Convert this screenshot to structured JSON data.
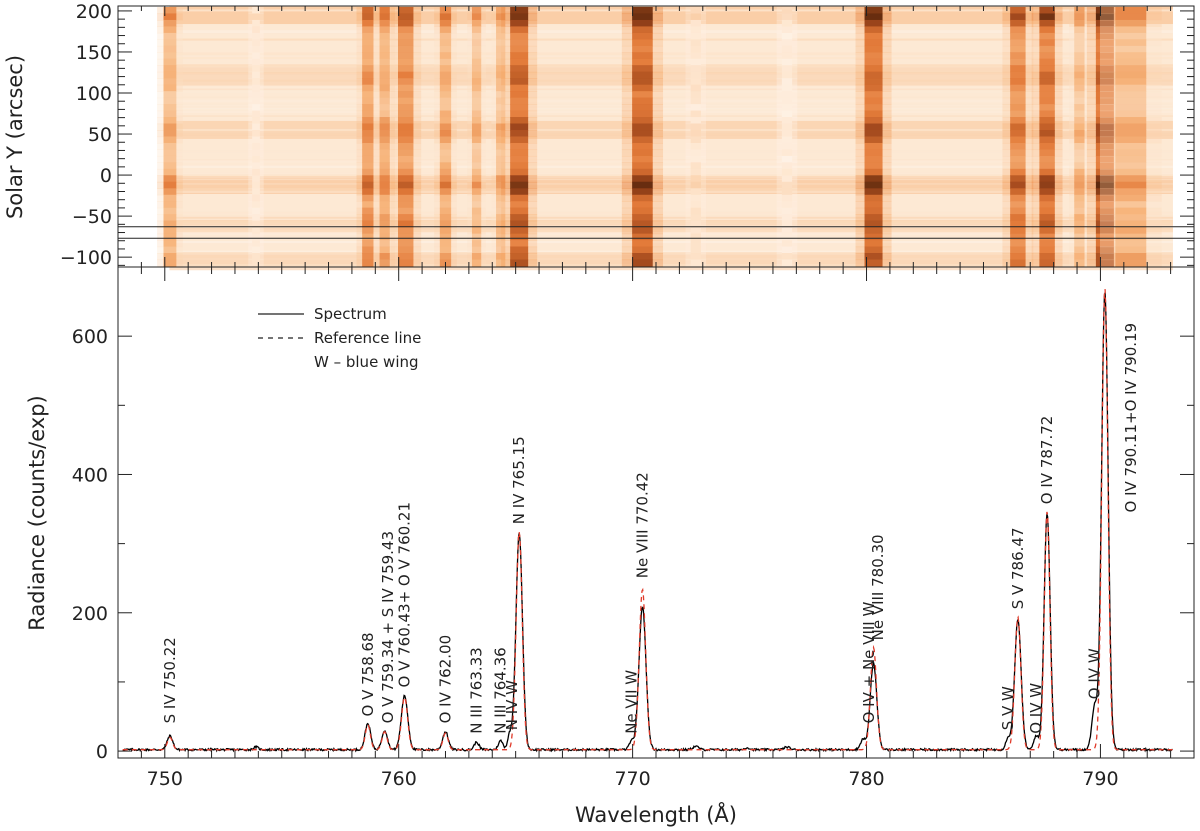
{
  "chart_data": [
    {
      "type": "heatmap",
      "ylabel": "Solar Y (arcsec)",
      "xlim": [
        748,
        794
      ],
      "ylim": [
        -112,
        206
      ],
      "yticks": [
        200,
        150,
        100,
        50,
        0,
        -50,
        -100
      ],
      "colormap": [
        "#ffffff",
        "#fde3c9",
        "#f4a05a",
        "#d85a14",
        "#7a2205",
        "#150400"
      ],
      "data_x_range": [
        750.2,
        793.1
      ],
      "selection_rows": [
        -63,
        -77
      ],
      "dark_columns": [
        {
          "x": 750.22,
          "w": 0.25,
          "v": 0.55
        },
        {
          "x": 753.9,
          "w": 0.15,
          "v": 0.2
        },
        {
          "x": 758.68,
          "w": 0.22,
          "v": 0.7
        },
        {
          "x": 759.4,
          "w": 0.2,
          "v": 0.6
        },
        {
          "x": 760.3,
          "w": 0.3,
          "v": 0.75
        },
        {
          "x": 762.0,
          "w": 0.22,
          "v": 0.6
        },
        {
          "x": 763.33,
          "w": 0.18,
          "v": 0.5
        },
        {
          "x": 764.36,
          "w": 0.18,
          "v": 0.5
        },
        {
          "x": 765.15,
          "w": 0.35,
          "v": 0.95
        },
        {
          "x": 770.42,
          "w": 0.4,
          "v": 0.98
        },
        {
          "x": 772.7,
          "w": 0.2,
          "v": 0.25
        },
        {
          "x": 776.6,
          "w": 0.2,
          "v": 0.2
        },
        {
          "x": 780.3,
          "w": 0.35,
          "v": 0.95
        },
        {
          "x": 786.47,
          "w": 0.3,
          "v": 0.8
        },
        {
          "x": 787.72,
          "w": 0.3,
          "v": 0.9
        },
        {
          "x": 789.1,
          "w": 0.2,
          "v": 0.5
        },
        {
          "x": 790.19,
          "w": 0.35,
          "v": 0.98
        },
        {
          "x": 791.3,
          "w": 0.6,
          "v": 0.55
        }
      ],
      "bright_rows": [
        {
          "y": 195,
          "v": 0.9
        },
        {
          "y": 120,
          "v": 0.35
        },
        {
          "y": 55,
          "v": 0.55
        },
        {
          "y": -12,
          "v": 0.85
        },
        {
          "y": -60,
          "v": 0.4
        },
        {
          "y": -105,
          "v": 0.45
        }
      ]
    },
    {
      "type": "line",
      "xlabel": "Wavelength (Å)",
      "ylabel": "Radiance (counts/exp)",
      "xlim": [
        748,
        794
      ],
      "ylim": [
        -10,
        700
      ],
      "xticks": [
        750,
        760,
        770,
        780,
        790
      ],
      "yticks": [
        0,
        200,
        400,
        600
      ],
      "continuum": 2,
      "series": [
        {
          "name": "Spectrum",
          "style": "solid",
          "color": "#000000",
          "x_range": [
            748.2,
            793.1
          ],
          "peaks": [
            {
              "x": 750.22,
              "h": 20,
              "w": 0.12
            },
            {
              "x": 753.9,
              "h": 4,
              "w": 0.1
            },
            {
              "x": 758.68,
              "h": 38,
              "w": 0.12
            },
            {
              "x": 759.4,
              "h": 28,
              "w": 0.12
            },
            {
              "x": 760.25,
              "h": 78,
              "w": 0.14
            },
            {
              "x": 762.0,
              "h": 26,
              "w": 0.12
            },
            {
              "x": 763.33,
              "h": 11,
              "w": 0.1
            },
            {
              "x": 764.36,
              "h": 13,
              "w": 0.1
            },
            {
              "x": 764.75,
              "h": 22,
              "w": 0.09
            },
            {
              "x": 765.15,
              "h": 313,
              "w": 0.14
            },
            {
              "x": 769.95,
              "h": 12,
              "w": 0.1
            },
            {
              "x": 770.42,
              "h": 207,
              "w": 0.15
            },
            {
              "x": 772.7,
              "h": 5,
              "w": 0.12
            },
            {
              "x": 774.9,
              "h": 3,
              "w": 0.1
            },
            {
              "x": 776.6,
              "h": 4,
              "w": 0.12
            },
            {
              "x": 779.85,
              "h": 15,
              "w": 0.11
            },
            {
              "x": 780.3,
              "h": 125,
              "w": 0.14
            },
            {
              "x": 786.05,
              "h": 17,
              "w": 0.1
            },
            {
              "x": 786.47,
              "h": 188,
              "w": 0.14
            },
            {
              "x": 787.25,
              "h": 20,
              "w": 0.1
            },
            {
              "x": 787.72,
              "h": 342,
              "w": 0.13
            },
            {
              "x": 789.75,
              "h": 62,
              "w": 0.12
            },
            {
              "x": 790.19,
              "h": 663,
              "w": 0.14
            }
          ]
        },
        {
          "name": "Reference line",
          "style": "dashed",
          "color": "#e03a2a",
          "x_range": [
            748.2,
            793.1
          ],
          "peaks": [
            {
              "x": 750.22,
              "h": 18,
              "w": 0.11
            },
            {
              "x": 758.68,
              "h": 36,
              "w": 0.11
            },
            {
              "x": 759.4,
              "h": 26,
              "w": 0.11
            },
            {
              "x": 760.25,
              "h": 76,
              "w": 0.13
            },
            {
              "x": 762.0,
              "h": 24,
              "w": 0.11
            },
            {
              "x": 765.15,
              "h": 315,
              "w": 0.13
            },
            {
              "x": 770.42,
              "h": 232,
              "w": 0.14
            },
            {
              "x": 780.3,
              "h": 148,
              "w": 0.13
            },
            {
              "x": 786.47,
              "h": 192,
              "w": 0.13
            },
            {
              "x": 787.72,
              "h": 345,
              "w": 0.12
            },
            {
              "x": 790.19,
              "h": 668,
              "w": 0.13
            }
          ]
        }
      ],
      "legend": {
        "position": "top-left",
        "entries": [
          {
            "style": "solid",
            "text": "Spectrum"
          },
          {
            "style": "dashed",
            "text": "Reference line"
          },
          {
            "style": "none",
            "text": "W – blue wing"
          }
        ]
      },
      "annotations": [
        {
          "x": 750.22,
          "y": 40,
          "lines": [
            "S IV 750.22"
          ]
        },
        {
          "x": 758.68,
          "y": 50,
          "lines": [
            "O V 758.68"
          ]
        },
        {
          "x": 759.55,
          "y": 40,
          "lines": [
            "O V 759.34 + S IV 759.43"
          ]
        },
        {
          "x": 760.25,
          "y": 92,
          "lines": [
            "O V 760.43+ O V 760.21"
          ]
        },
        {
          "x": 762.0,
          "y": 40,
          "lines": [
            "O IV 762.00"
          ]
        },
        {
          "x": 763.33,
          "y": 25,
          "lines": [
            "N III 763.33"
          ]
        },
        {
          "x": 764.36,
          "y": 25,
          "lines": [
            "N III 764.36"
          ]
        },
        {
          "x": 764.85,
          "y": 30,
          "lines": [
            "N IV W"
          ]
        },
        {
          "x": 765.15,
          "y": 328,
          "lines": [
            "N IV 765.15"
          ]
        },
        {
          "x": 769.95,
          "y": 25,
          "lines": [
            "Ne VII W"
          ]
        },
        {
          "x": 770.42,
          "y": 250,
          "lines": [
            "Ne VIII 770.42"
          ]
        },
        {
          "x": 780.1,
          "y": 40,
          "lines": [
            "O IV + Ne VIII W"
          ]
        },
        {
          "x": 780.5,
          "y": 160,
          "lines": [
            "Ne VIII 780.30"
          ]
        },
        {
          "x": 786.05,
          "y": 30,
          "lines": [
            "S V W"
          ]
        },
        {
          "x": 786.47,
          "y": 205,
          "lines": [
            "S V 786.47"
          ]
        },
        {
          "x": 787.25,
          "y": 25,
          "lines": [
            "O IV W"
          ]
        },
        {
          "x": 787.72,
          "y": 357,
          "lines": [
            "O IV 787.72"
          ]
        },
        {
          "x": 789.75,
          "y": 75,
          "lines": [
            "O IV W"
          ]
        },
        {
          "x": 791.3,
          "y": 345,
          "lines": [
            "O IV 790.11+O IV 790.19"
          ]
        }
      ]
    }
  ]
}
